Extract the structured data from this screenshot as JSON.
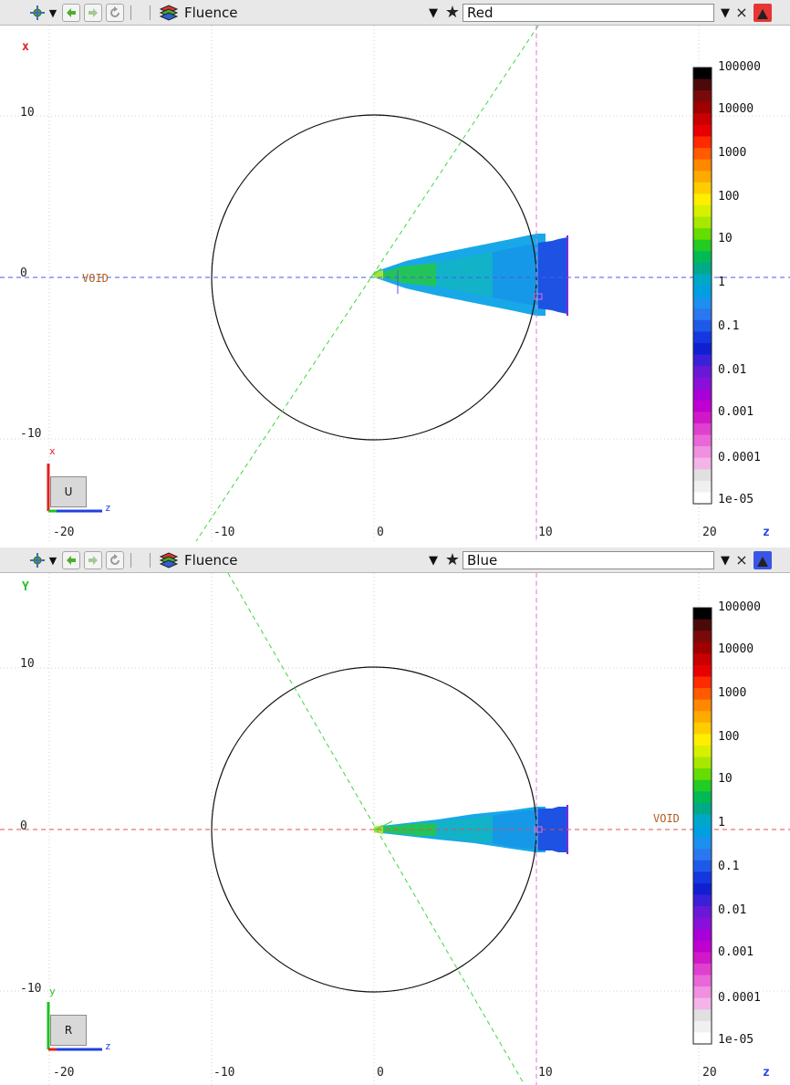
{
  "top_toolbar": {
    "title": "Fluence",
    "layer": "Red",
    "close_glyph": "×"
  },
  "top_plot": {
    "vertical_axis_label": "x",
    "horizontal_axis_label": "z",
    "y_ticks": [
      "10",
      "0",
      "-10"
    ],
    "x_ticks": [
      "-20",
      "-10",
      "0",
      "10",
      "20"
    ],
    "void_label": "VOID",
    "orientation_cube": "U",
    "orientation_x": "x",
    "orientation_z": "z",
    "colorbar_labels": [
      "100000",
      "10000",
      "1000",
      "100",
      "10",
      "1",
      "0.1",
      "0.01",
      "0.001",
      "0.0001",
      "1e-05"
    ]
  },
  "bottom_toolbar": {
    "title": "Fluence",
    "layer": "Blue",
    "close_glyph": "×"
  },
  "bottom_plot": {
    "vertical_axis_label": "Y",
    "horizontal_axis_label": "z",
    "y_ticks": [
      "10",
      "0",
      "-10"
    ],
    "x_ticks": [
      "-20",
      "-10",
      "0",
      "10",
      "20"
    ],
    "void_label": "VOID",
    "orientation_cube": "R",
    "orientation_y": "y",
    "orientation_z": "z",
    "colorbar_labels": [
      "100000",
      "10000",
      "1000",
      "100",
      "10",
      "1",
      "0.1",
      "0.01",
      "0.001",
      "0.0001",
      "1e-05"
    ]
  },
  "colorbar_colors": [
    "#000000",
    "#4a0a0a",
    "#7a0a0a",
    "#a00000",
    "#c80000",
    "#e80000",
    "#ff2a00",
    "#ff5a00",
    "#ff8800",
    "#ffaa00",
    "#ffcc00",
    "#ffee00",
    "#d8f000",
    "#a8e800",
    "#66dd00",
    "#22cc22",
    "#00bb55",
    "#00aa88",
    "#00a8c8",
    "#00a0e0",
    "#1c90f0",
    "#2a78f0",
    "#1e5ae8",
    "#1438e0",
    "#1020d0",
    "#3a20d8",
    "#6a18d8",
    "#8810d8",
    "#a800d8",
    "#c000d0",
    "#d018c8",
    "#e040d0",
    "#e868d8",
    "#f090e0",
    "#f4b4e8",
    "#e0e0e0",
    "#f0f0f0",
    "#ffffff"
  ],
  "icons": {
    "view_menu": "view-options-icon",
    "back": "arrow-left-icon",
    "forward": "arrow-right-icon",
    "refresh": "refresh-icon",
    "layers": "layers-icon",
    "star": "star-icon",
    "dropdown": "chevron-down-icon",
    "close": "close-icon",
    "collapse": "triangle-up-icon"
  }
}
